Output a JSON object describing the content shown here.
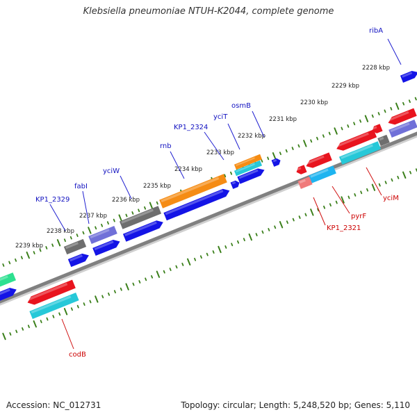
{
  "title": "Klebsiella pneumoniae NTUH-K2044, complete genome",
  "footer": {
    "accession": "Accession: NC_012731",
    "summary": "Topology: circular; Length: 5,248,520 bp; Genes: 5,110"
  },
  "scale": {
    "kbp_labels": [
      "2228 kbp",
      "2229 kbp",
      "2230 kbp",
      "2231 kbp",
      "2232 kbp",
      "2233 kbp",
      "2234 kbp",
      "2235 kbp",
      "2236 kbp",
      "2237 kbp",
      "2238 kbp",
      "2239 kbp"
    ]
  },
  "gene_labels": {
    "forward": [
      "ribA",
      "osmB",
      "yciT",
      "KP1_2324",
      "rnb",
      "yciW",
      "fabI",
      "KP1_2329"
    ],
    "reverse": [
      "yciM",
      "pyrF",
      "KP1_2321",
      "codB"
    ]
  },
  "colors": {
    "forward_label": "#1010c0",
    "reverse_label": "#cc0000",
    "backbone": "#808080",
    "tick": "#3a7f1a",
    "blue_cds": "#1414e6",
    "red_cds": "#e8141e",
    "cyan_cds": "#26c8d8",
    "gray_cds": "#6e6e6e",
    "purple_cds": "#7070d8",
    "orange_cds": "#f58c14",
    "skyblue_cds": "#1eb4f0",
    "green_cds": "#2ee090",
    "salmon_cds": "#f07a7a"
  }
}
